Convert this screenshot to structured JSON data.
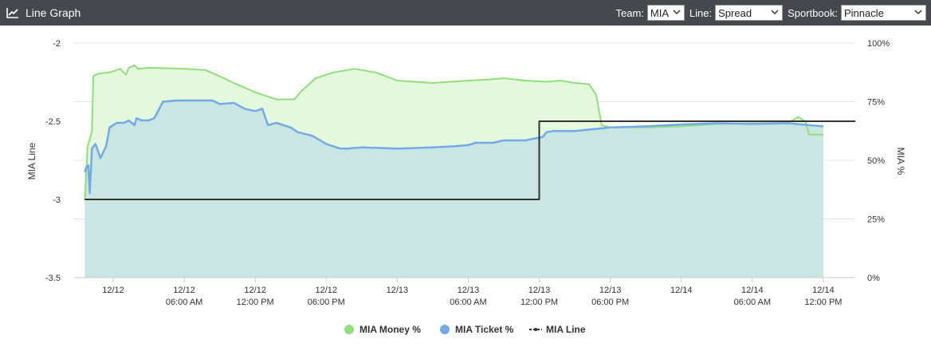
{
  "header": {
    "title": "Line Graph",
    "icon": "line-chart-icon",
    "team_label": "Team:",
    "team_value": "MIA",
    "line_label": "Line:",
    "line_value": "Spread",
    "sportsbook_label": "Sportbook:",
    "sportsbook_value": "Pinnacle"
  },
  "chart_data": {
    "type": "line",
    "x_axis": {
      "ticks": [
        {
          "x": 0.5,
          "line1": "12/12",
          "line2": ""
        },
        {
          "x": 1.5,
          "line1": "12/12",
          "line2": "06:00 AM"
        },
        {
          "x": 2.5,
          "line1": "12/12",
          "line2": "12:00 PM"
        },
        {
          "x": 3.5,
          "line1": "12/12",
          "line2": "06:00 PM"
        },
        {
          "x": 4.5,
          "line1": "12/13",
          "line2": ""
        },
        {
          "x": 5.5,
          "line1": "12/13",
          "line2": "06:00 AM"
        },
        {
          "x": 6.5,
          "line1": "12/13",
          "line2": "12:00 PM"
        },
        {
          "x": 7.5,
          "line1": "12/13",
          "line2": "06:00 PM"
        },
        {
          "x": 8.5,
          "line1": "12/14",
          "line2": ""
        },
        {
          "x": 9.5,
          "line1": "12/14",
          "line2": "06:00 AM"
        },
        {
          "x": 10.5,
          "line1": "12/14",
          "line2": "12:00 PM"
        }
      ],
      "range": [
        -0.05,
        10.95
      ]
    },
    "y_left": {
      "title": "MIA Line",
      "ticks": [
        "-2",
        "-2.5",
        "-3",
        "-3.5"
      ],
      "tick_values": [
        -2,
        -2.5,
        -3,
        -3.5
      ],
      "range": [
        -3.5,
        -2
      ]
    },
    "y_right": {
      "title": "MIA %",
      "ticks": [
        "100%",
        "75%",
        "50%",
        "25%",
        "0%"
      ],
      "tick_values": [
        100,
        75,
        50,
        25,
        0
      ],
      "range": [
        0,
        100
      ]
    },
    "grid": true,
    "legend_position": "bottom-center",
    "series": [
      {
        "name": "MIA Money %",
        "axis": "right",
        "color": "#8fe07a",
        "fill": "#e3f8dc",
        "points": [
          [
            0.1,
            33
          ],
          [
            0.14,
            56
          ],
          [
            0.2,
            62
          ],
          [
            0.22,
            86
          ],
          [
            0.3,
            87
          ],
          [
            0.45,
            87.5
          ],
          [
            0.6,
            89
          ],
          [
            0.68,
            86.5
          ],
          [
            0.72,
            89.5
          ],
          [
            0.8,
            90.5
          ],
          [
            0.85,
            89
          ],
          [
            1,
            89.5
          ],
          [
            1.5,
            89
          ],
          [
            1.8,
            88.5
          ],
          [
            1.95,
            86.5
          ],
          [
            2.2,
            83
          ],
          [
            2.5,
            79
          ],
          [
            2.8,
            76
          ],
          [
            3.05,
            76
          ],
          [
            3.15,
            79.5
          ],
          [
            3.35,
            85
          ],
          [
            3.6,
            87.5
          ],
          [
            3.9,
            89
          ],
          [
            4.2,
            87.5
          ],
          [
            4.5,
            84
          ],
          [
            5,
            83
          ],
          [
            5.5,
            84
          ],
          [
            5.8,
            84.5
          ],
          [
            6,
            85
          ],
          [
            6.3,
            84
          ],
          [
            6.6,
            83.5
          ],
          [
            6.8,
            84
          ],
          [
            7,
            83
          ],
          [
            7.2,
            82.5
          ],
          [
            7.3,
            78
          ],
          [
            7.38,
            65
          ],
          [
            7.5,
            64
          ],
          [
            8,
            64
          ],
          [
            8.5,
            64.5
          ],
          [
            9,
            65.5
          ],
          [
            9.5,
            65.8
          ],
          [
            10,
            66
          ],
          [
            10.15,
            68.5
          ],
          [
            10.25,
            66.5
          ],
          [
            10.3,
            61
          ],
          [
            10.5,
            61
          ]
        ]
      },
      {
        "name": "MIA Ticket %",
        "axis": "right",
        "color": "#74a9e8",
        "fill": "#c9e6e3",
        "points": [
          [
            0.1,
            45
          ],
          [
            0.12,
            47
          ],
          [
            0.15,
            48
          ],
          [
            0.17,
            36
          ],
          [
            0.2,
            55
          ],
          [
            0.25,
            57
          ],
          [
            0.32,
            51
          ],
          [
            0.4,
            56
          ],
          [
            0.45,
            64
          ],
          [
            0.55,
            66
          ],
          [
            0.65,
            66
          ],
          [
            0.72,
            67
          ],
          [
            0.8,
            65
          ],
          [
            0.83,
            68
          ],
          [
            0.9,
            67
          ],
          [
            1,
            67
          ],
          [
            1.08,
            68
          ],
          [
            1.2,
            75
          ],
          [
            1.4,
            75.5
          ],
          [
            1.6,
            75.5
          ],
          [
            1.9,
            75.5
          ],
          [
            2,
            74
          ],
          [
            2.2,
            74.5
          ],
          [
            2.35,
            72
          ],
          [
            2.5,
            71
          ],
          [
            2.6,
            72
          ],
          [
            2.68,
            65
          ],
          [
            2.8,
            66
          ],
          [
            3,
            64
          ],
          [
            3.1,
            62
          ],
          [
            3.3,
            60.5
          ],
          [
            3.5,
            57
          ],
          [
            3.7,
            55
          ],
          [
            3.8,
            55
          ],
          [
            4,
            55.5
          ],
          [
            4.5,
            55
          ],
          [
            5,
            55.5
          ],
          [
            5.3,
            56
          ],
          [
            5.5,
            56.5
          ],
          [
            5.6,
            57.5
          ],
          [
            5.85,
            57.5
          ],
          [
            6,
            58.5
          ],
          [
            6.3,
            58.5
          ],
          [
            6.55,
            60
          ],
          [
            6.6,
            62
          ],
          [
            6.7,
            62.5
          ],
          [
            7,
            62.5
          ],
          [
            7.5,
            64
          ],
          [
            8,
            64.5
          ],
          [
            8.5,
            65.3
          ],
          [
            9,
            65.8
          ],
          [
            9.5,
            65.5
          ],
          [
            10,
            65.8
          ],
          [
            10.3,
            65
          ],
          [
            10.5,
            64.5
          ]
        ]
      },
      {
        "name": "MIA Line",
        "axis": "left",
        "color": "#333333",
        "points": [
          [
            0.1,
            -3
          ],
          [
            6.5,
            -3
          ],
          [
            6.5,
            -2.5
          ],
          [
            10.95,
            -2.5
          ]
        ]
      }
    ]
  }
}
